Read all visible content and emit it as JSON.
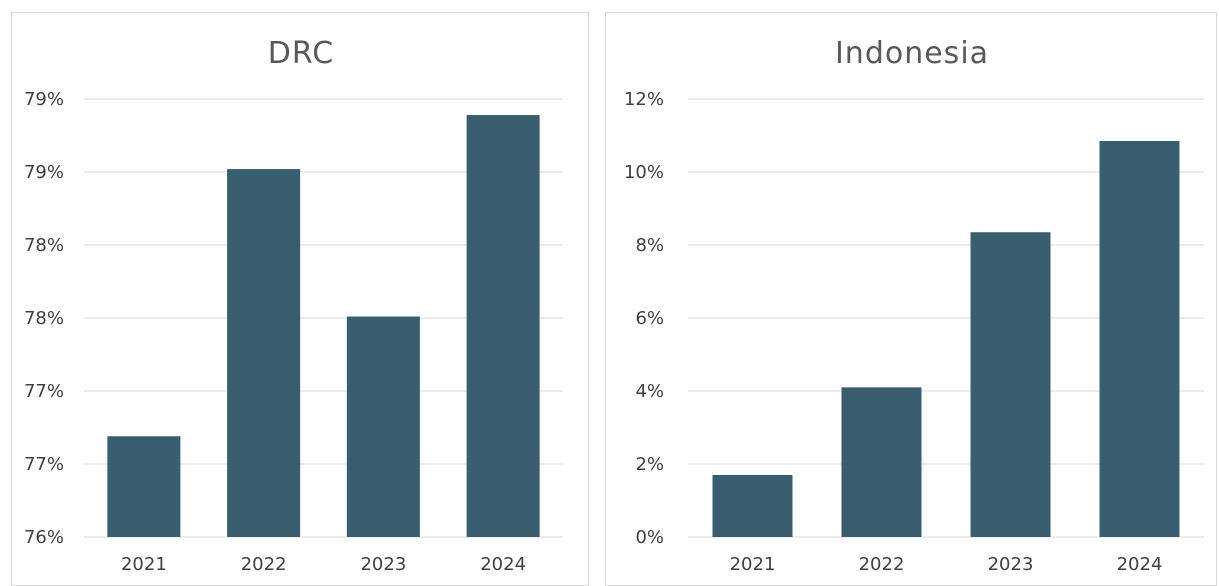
{
  "chart_data": [
    {
      "type": "bar",
      "title": "DRC",
      "categories": [
        "2021",
        "2022",
        "2023",
        "2024"
      ],
      "values": [
        76.69,
        78.52,
        77.51,
        78.89
      ],
      "ylim": [
        76.0,
        79.0
      ],
      "yticks": [
        76.0,
        76.5,
        77.0,
        77.5,
        78.0,
        78.5,
        79.0
      ],
      "ytick_labels": [
        "76%",
        "77%",
        "77%",
        "78%",
        "78%",
        "79%",
        "79%"
      ],
      "xlabel": "",
      "ylabel": "",
      "grid": true,
      "legend": "none",
      "bar_color": "#395e70"
    },
    {
      "type": "bar",
      "title": "Indonesia",
      "categories": [
        "2021",
        "2022",
        "2023",
        "2024"
      ],
      "values": [
        1.7,
        4.1,
        8.35,
        10.85
      ],
      "ylim": [
        0,
        12
      ],
      "yticks": [
        0,
        2,
        4,
        6,
        8,
        10,
        12
      ],
      "ytick_labels": [
        "0%",
        "2%",
        "4%",
        "6%",
        "8%",
        "10%",
        "12%"
      ],
      "xlabel": "",
      "ylabel": "",
      "grid": true,
      "legend": "none",
      "bar_color": "#395e70"
    }
  ]
}
